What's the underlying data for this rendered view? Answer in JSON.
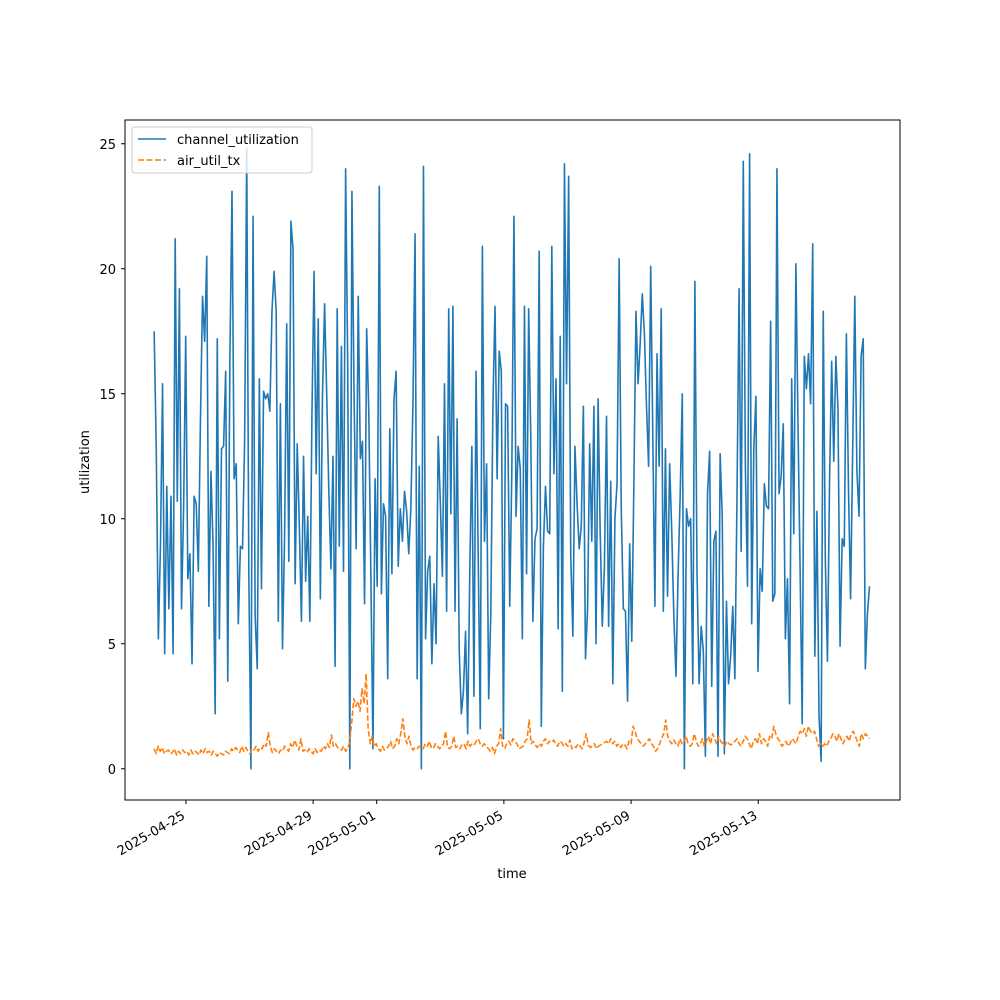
{
  "chart_data": {
    "type": "line",
    "xlabel": "time",
    "ylabel": "utilization",
    "xlim": [
      "2025-04-23T02:00",
      "2025-05-17T11:00"
    ],
    "ylim": [
      -1.25,
      25.95
    ],
    "x_ticks": [
      "2025-04-25",
      "2025-04-29",
      "2025-05-01",
      "2025-05-05",
      "2025-05-09",
      "2025-05-13"
    ],
    "y_ticks": [
      0,
      5,
      10,
      15,
      20,
      25
    ],
    "legend": {
      "placement": "upper-left"
    },
    "grid": false,
    "x_start": "2025-04-24T00:00",
    "x_end": "2025-05-16T12:00",
    "series": [
      {
        "name": "channel_utilization",
        "color": "#1f77b4",
        "style": "solid",
        "values": [
          17.5,
          12.8,
          5.2,
          8.9,
          15.4,
          4.6,
          11.3,
          6.4,
          10.9,
          4.6,
          21.2,
          10.7,
          19.2,
          6.4,
          10.4,
          17.3,
          7.6,
          8.6,
          4.2,
          10.9,
          10.6,
          7.9,
          13.9,
          18.9,
          17.1,
          20.5,
          6.5,
          11.9,
          8.9,
          2.2,
          17.2,
          5.2,
          12.8,
          12.9,
          15.9,
          3.5,
          16.4,
          23.1,
          11.6,
          12.2,
          5.8,
          8.9,
          8.8,
          13.1,
          24.8,
          7.8,
          0.0,
          22.1,
          6.1,
          4.0,
          15.6,
          7.2,
          15.1,
          14.8,
          15.0,
          14.3,
          18.3,
          19.9,
          18.3,
          5.9,
          14.6,
          4.8,
          9.3,
          17.8,
          8.3,
          21.9,
          20.8,
          7.4,
          13.0,
          9.7,
          5.9,
          12.5,
          7.5,
          10.1,
          5.9,
          14.2,
          19.9,
          11.8,
          18.0,
          6.8,
          14.9,
          18.6,
          15.0,
          11.2,
          8.0,
          12.5,
          4.1,
          18.4,
          8.9,
          16.9,
          7.9,
          24.0,
          16.1,
          0.0,
          23.1,
          15.1,
          8.8,
          18.9,
          12.4,
          13.1,
          6.6,
          17.6,
          14.3,
          7.8,
          0.8,
          11.6,
          7.3,
          23.3,
          7.0,
          10.6,
          10.1,
          3.6,
          13.6,
          7.8,
          14.8,
          15.9,
          8.1,
          10.4,
          9.1,
          11.1,
          10.3,
          8.6,
          10.4,
          14.6,
          21.4,
          3.6,
          12.1,
          0.0,
          24.1,
          5.2,
          7.9,
          8.5,
          4.2,
          7.4,
          5.0,
          13.3,
          10.7,
          7.7,
          15.4,
          6.3,
          18.4,
          10.2,
          18.5,
          6.3,
          14.0,
          4.7,
          2.2,
          3.1,
          5.5,
          1.4,
          7.8,
          12.9,
          2.9,
          15.9,
          8.6,
          1.6,
          20.9,
          9.1,
          12.2,
          2.8,
          6.2,
          14.5,
          18.5,
          11.6,
          16.7,
          15.9,
          1.2,
          14.6,
          14.5,
          6.5,
          11.9,
          22.1,
          10.1,
          12.9,
          12.0,
          5.2,
          18.5,
          7.8,
          18.4,
          13.3,
          5.9,
          9.2,
          9.6,
          20.7,
          1.7,
          8.9,
          11.3,
          9.5,
          9.4,
          20.9,
          11.8,
          15.6,
          5.6,
          17.3,
          3.1,
          24.2,
          15.4,
          23.7,
          8.5,
          5.3,
          12.9,
          10.6,
          8.8,
          9.7,
          14.5,
          4.4,
          6.4,
          13.0,
          9.1,
          14.5,
          5.0,
          14.8,
          9.4,
          5.7,
          8.1,
          14.1,
          5.7,
          11.5,
          3.4,
          10.0,
          11.4,
          20.4,
          10.4,
          6.4,
          6.3,
          2.7,
          9.0,
          5.1,
          11.4,
          18.3,
          15.4,
          17.0,
          19.0,
          17.4,
          14.5,
          12.1,
          20.1,
          13.3,
          6.5,
          16.6,
          12.1,
          18.4,
          6.3,
          12.8,
          6.9,
          12.2,
          9.5,
          6.1,
          3.7,
          7.7,
          10.9,
          15.0,
          0.0,
          10.4,
          9.7,
          10.0,
          3.4,
          19.5,
          7.9,
          3.4,
          5.7,
          4.7,
          0.5,
          11.0,
          12.7,
          3.3,
          9.1,
          9.5,
          0.5,
          12.6,
          10.1,
          0.6,
          6.7,
          3.4,
          4.5,
          6.5,
          3.6,
          10.8,
          19.2,
          8.7,
          24.3,
          12.0,
          7.3,
          24.6,
          5.8,
          12.8,
          14.9,
          3.9,
          8.0,
          7.1,
          11.4,
          10.5,
          10.4,
          17.9,
          6.7,
          7.0,
          24.0,
          11.0,
          11.7,
          13.8,
          5.2,
          7.6,
          2.6,
          15.6,
          9.4,
          20.2,
          13.8,
          8.0,
          1.8,
          16.5,
          15.2,
          16.6,
          14.6,
          21.0,
          4.5,
          10.3,
          2.1,
          0.3,
          18.3,
          8.3,
          4.3,
          11.5,
          16.3,
          12.3,
          16.5,
          14.4,
          4.9,
          9.2,
          8.9,
          17.4,
          11.2,
          6.8,
          12.8,
          18.9,
          11.9,
          10.1,
          16.5,
          17.2,
          4.0,
          6.2,
          7.3
        ]
      },
      {
        "name": "air_util_tx",
        "color": "#ff7f0e",
        "style": "dashed",
        "values": [
          0.8,
          0.6,
          0.9,
          0.7,
          0.85,
          0.6,
          0.7,
          0.75,
          0.6,
          0.65,
          0.8,
          0.55,
          0.7,
          0.6,
          0.75,
          0.65,
          0.7,
          0.55,
          0.75,
          0.6,
          0.7,
          0.65,
          0.55,
          0.75,
          0.6,
          0.8,
          0.65,
          0.7,
          0.55,
          0.7,
          0.6,
          0.5,
          0.65,
          0.6,
          0.55,
          0.7,
          0.65,
          0.6,
          0.8,
          0.7,
          0.85,
          0.75,
          0.65,
          0.9,
          0.7,
          0.85,
          0.7,
          0.6,
          0.8,
          0.75,
          0.9,
          0.7,
          0.85,
          0.8,
          1.0,
          0.9,
          1.45,
          0.9,
          0.65,
          0.8,
          0.7,
          0.6,
          0.75,
          0.7,
          0.9,
          0.8,
          0.7,
          1.0,
          0.85,
          1.15,
          0.9,
          0.75,
          1.2,
          0.7,
          0.75,
          0.65,
          0.8,
          0.7,
          0.6,
          0.8,
          0.65,
          0.75,
          0.7,
          0.9,
          0.8,
          1.0,
          0.85,
          1.35,
          0.9,
          1.0,
          0.85,
          0.8,
          0.75,
          0.9,
          0.7,
          0.8,
          1.1,
          1.9,
          2.8,
          2.5,
          2.7,
          2.3,
          3.2,
          2.6,
          3.8,
          1.6,
          1.0,
          1.3,
          0.9,
          1.0,
          0.8,
          0.7,
          0.9,
          0.75,
          0.8,
          0.9,
          1.1,
          0.8,
          0.9,
          1.2,
          1.0,
          1.4,
          2.0,
          1.3,
          1.0,
          1.3,
          0.9,
          0.75,
          0.85,
          0.8,
          0.9,
          0.85,
          0.8,
          1.0,
          0.9,
          1.1,
          0.85,
          0.8,
          1.0,
          0.9,
          0.8,
          0.9,
          1.0,
          1.5,
          0.85,
          0.8,
          0.9,
          1.3,
          0.85,
          0.9,
          0.8,
          0.95,
          1.0,
          0.8,
          1.1,
          0.9,
          1.0,
          0.95,
          1.1,
          1.2,
          1.0,
          0.9,
          1.0,
          0.9,
          0.8,
          0.7,
          0.85,
          0.6,
          0.9,
          1.0,
          1.6,
          0.9,
          0.8,
          1.0,
          1.1,
          0.95,
          1.2,
          1.1,
          1.0,
          0.8,
          0.85,
          0.9,
          1.1,
          1.2,
          1.95,
          1.0,
          1.1,
          0.95,
          0.85,
          1.0,
          0.9,
          1.1,
          1.2,
          1.0,
          1.1,
          1.05,
          1.15,
          1.0,
          0.9,
          1.1,
          1.05,
          0.9,
          1.0,
          0.9,
          1.15,
          0.8,
          0.9,
          0.85,
          1.0,
          0.9,
          0.8,
          1.05,
          1.4,
          0.95,
          0.85,
          0.9,
          1.0,
          0.8,
          0.9,
          0.95,
          1.0,
          1.05,
          1.1,
          1.0,
          1.2,
          1.0,
          1.1,
          0.9,
          1.0,
          0.85,
          1.0,
          0.95,
          0.8,
          1.1,
          1.0,
          1.7,
          1.5,
          1.2,
          1.1,
          1.0,
          0.9,
          1.0,
          1.1,
          1.2,
          1.0,
          0.9,
          0.7,
          0.8,
          1.0,
          1.2,
          1.4,
          1.95,
          1.3,
          1.1,
          1.0,
          1.15,
          1.0,
          0.9,
          1.2,
          1.0,
          1.1,
          1.3,
          1.0,
          0.9,
          1.0,
          1.4,
          1.1,
          0.9,
          1.0,
          1.2,
          0.9,
          1.1,
          1.3,
          1.0,
          1.4,
          1.2,
          1.0,
          1.3,
          1.1,
          1.0,
          0.9,
          1.1,
          1.0,
          0.95,
          1.05,
          1.1,
          1.2,
          1.0,
          0.9,
          1.1,
          1.3,
          1.2,
          1.0,
          0.8,
          1.1,
          1.2,
          1.0,
          1.4,
          1.0,
          1.2,
          1.1,
          0.9,
          1.3,
          1.2,
          1.7,
          1.4,
          1.2,
          1.1,
          0.9,
          1.0,
          1.1,
          0.9,
          1.0,
          1.2,
          1.1,
          1.0,
          1.3,
          1.5,
          1.4,
          1.6,
          1.3,
          1.7,
          1.5,
          1.4,
          1.5,
          1.2,
          0.9,
          1.0,
          0.9,
          1.0,
          0.9,
          1.1,
          1.2,
          1.4,
          1.3,
          1.1,
          1.4,
          1.2,
          1.0,
          1.2,
          1.3,
          1.1,
          1.4,
          1.5,
          1.3,
          1.1,
          0.9,
          1.4,
          1.2,
          1.4,
          1.3,
          1.2
        ]
      }
    ]
  }
}
